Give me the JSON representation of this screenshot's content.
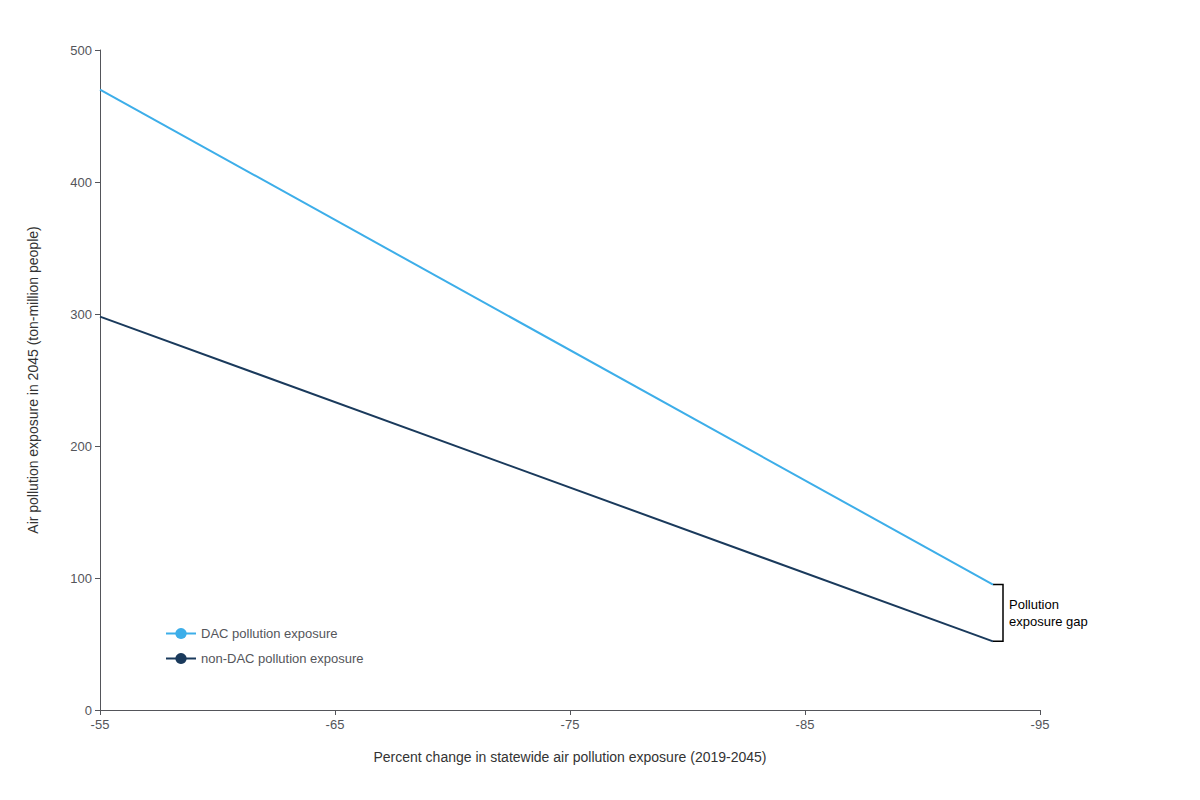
{
  "chart_data": {
    "type": "line",
    "xlabel": "Percent change in statewide air pollution exposure (2019-2045)",
    "ylabel": "Air pollution exposure in 2045 (ton-million people)",
    "x": [
      -55,
      -93
    ],
    "series": [
      {
        "name": "DAC pollution exposure",
        "color": "#3daee9",
        "values": [
          470,
          95
        ]
      },
      {
        "name": "non-DAC pollution exposure",
        "color": "#1a3a5c",
        "values": [
          298,
          52
        ]
      }
    ],
    "xlim": [
      -55,
      -95
    ],
    "ylim": [
      0,
      500
    ],
    "xticks": [
      -55,
      -65,
      -75,
      -85,
      -95
    ],
    "yticks": [
      0,
      100,
      200,
      300,
      400,
      500
    ],
    "grid": false,
    "legend": "lower left",
    "annotations": [
      {
        "text": "Pollution\nexposure gap",
        "x": -93,
        "y_top": 95,
        "y_bottom": 52
      }
    ]
  }
}
